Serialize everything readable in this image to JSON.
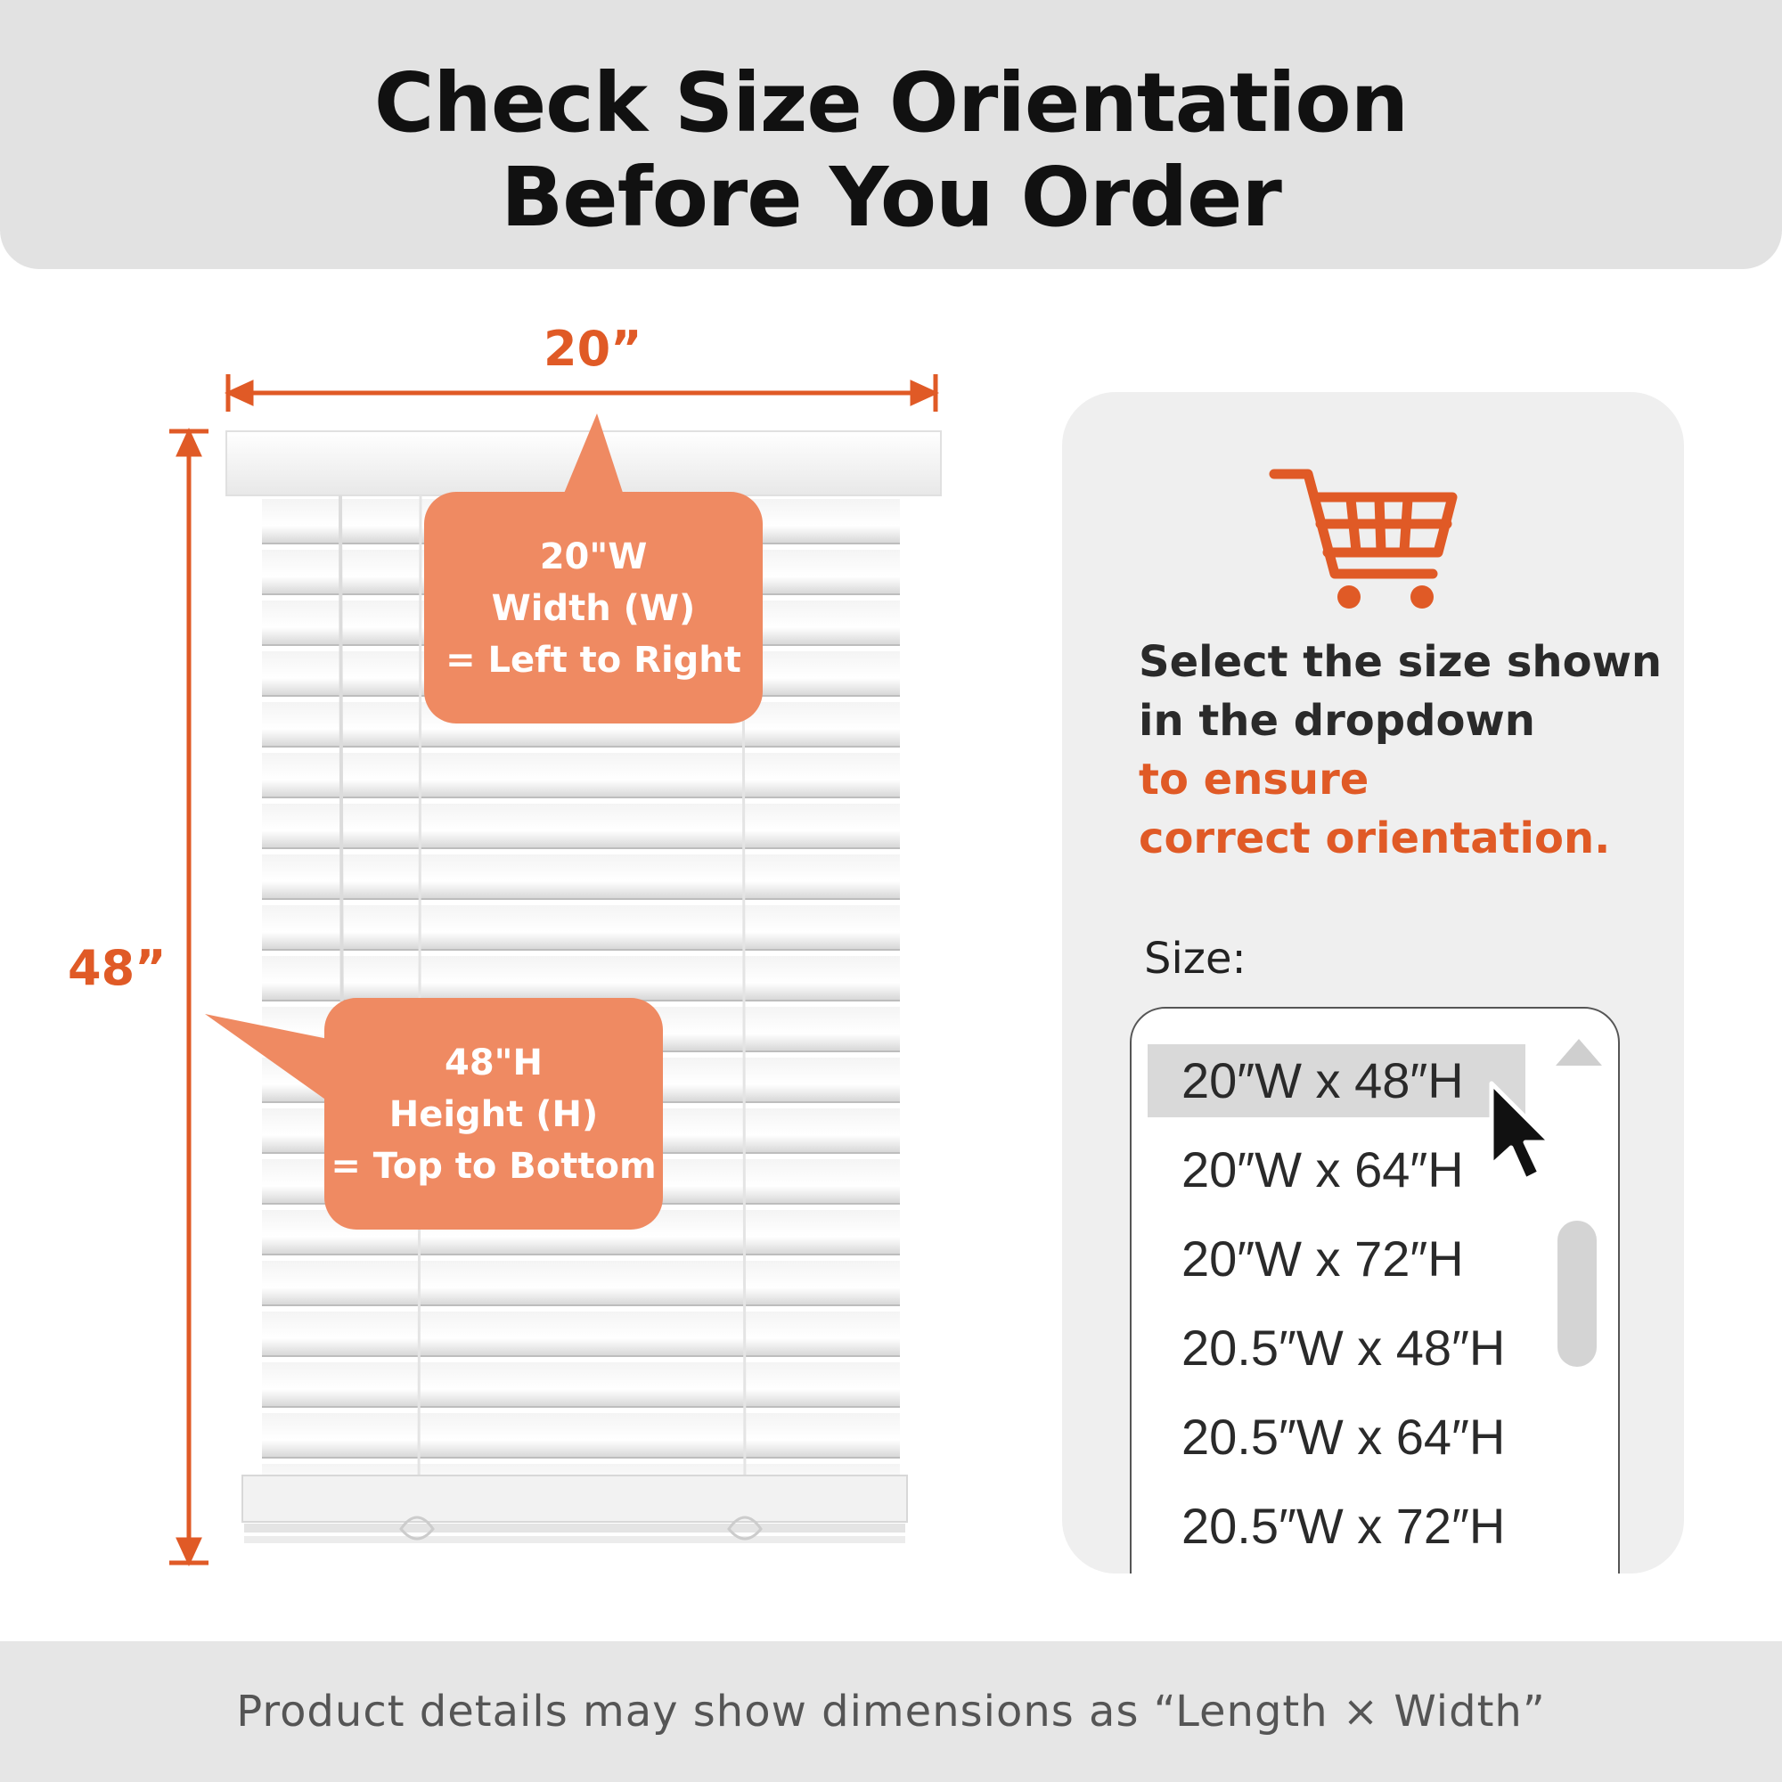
{
  "header": {
    "title_line1": "Check Size Orientation",
    "title_line2": "Before You Order"
  },
  "dimensions": {
    "width": "20”",
    "height": "48”"
  },
  "callouts": {
    "width": {
      "line1": "20\"W",
      "line2": "Width (W)",
      "line3": "= Left to Right"
    },
    "height": {
      "line1": "48\"H",
      "line2": "Height (H)",
      "line3": "= Top to Bottom"
    }
  },
  "panel": {
    "icon": "shopping-cart-icon",
    "instruction_line1": "Select the size shown",
    "instruction_line2": "in the dropdown",
    "instruction_highlight1": "to ensure",
    "instruction_highlight2": "correct orientation.",
    "size_label": "Size:",
    "options": [
      "20″W x 48″H",
      "20″W x 64″H",
      "20″W x 72″H",
      "20.5″W x 48″H",
      "20.5″W x 64″H",
      "20.5″W x 72″H"
    ],
    "selected_option": "20″W x 48″H"
  },
  "footer": {
    "note": "Product details may show dimensions as “Length × Width”"
  },
  "colors": {
    "accent": "#e05a26",
    "callout": "#ef8a62",
    "header_bg": "#e2e2e2",
    "panel_bg": "#efefef"
  }
}
